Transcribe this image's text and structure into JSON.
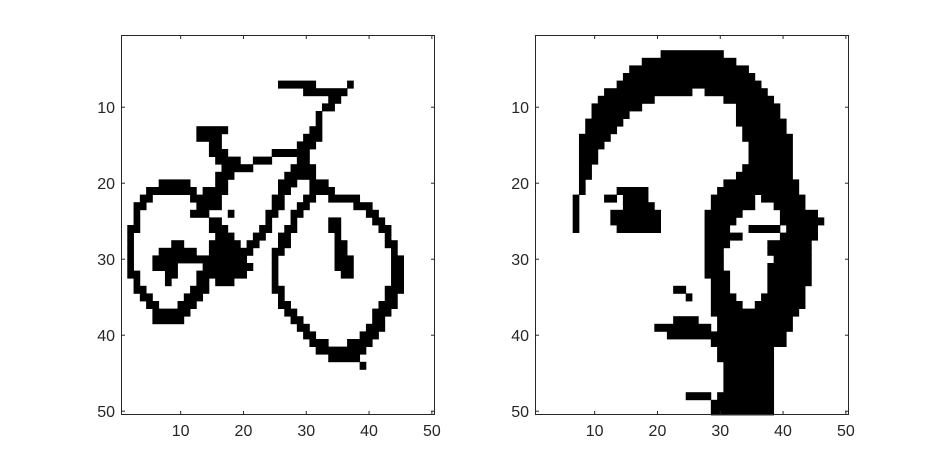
{
  "figure": {
    "background": "#ffffff",
    "axis_color": "#262626",
    "pixel_on_color": "#000000",
    "pixel_off_color": "#ffffff"
  },
  "chart_data": [
    {
      "type": "heatmap",
      "subtype": "binary-image",
      "title": "",
      "xlabel": "",
      "ylabel": "",
      "rows": 50,
      "cols": 50,
      "xlim": [
        0.5,
        50.5
      ],
      "ylim": [
        50.5,
        0.5
      ],
      "y_reversed": true,
      "x_ticks": [
        10,
        20,
        30,
        40,
        50
      ],
      "x_tick_labels": [
        "10",
        "20",
        "30",
        "40",
        "50"
      ],
      "y_ticks": [
        10,
        20,
        30,
        40,
        50
      ],
      "y_tick_labels": [
        "10",
        "20",
        "30",
        "40",
        "50"
      ],
      "grid": false,
      "legend": "none",
      "black_pixel_runs": [
        [
          7,
          26,
          31
        ],
        [
          7,
          37,
          37
        ],
        [
          8,
          30,
          36
        ],
        [
          9,
          34,
          35
        ],
        [
          10,
          33,
          34
        ],
        [
          11,
          32,
          32
        ],
        [
          12,
          32,
          32
        ],
        [
          13,
          13,
          17
        ],
        [
          13,
          31,
          32
        ],
        [
          14,
          13,
          16
        ],
        [
          14,
          30,
          32
        ],
        [
          15,
          15,
          16
        ],
        [
          15,
          29,
          31
        ],
        [
          16,
          15,
          17
        ],
        [
          16,
          25,
          30
        ],
        [
          17,
          16,
          19
        ],
        [
          17,
          22,
          24
        ],
        [
          17,
          29,
          30
        ],
        [
          18,
          17,
          21
        ],
        [
          18,
          28,
          31
        ],
        [
          19,
          16,
          18
        ],
        [
          19,
          27,
          29
        ],
        [
          19,
          30,
          31
        ],
        [
          20,
          7,
          11
        ],
        [
          20,
          16,
          17
        ],
        [
          20,
          26,
          28
        ],
        [
          20,
          31,
          33
        ],
        [
          21,
          5,
          12
        ],
        [
          21,
          14,
          17
        ],
        [
          21,
          26,
          27
        ],
        [
          21,
          31,
          34
        ],
        [
          22,
          4,
          5
        ],
        [
          22,
          12,
          16
        ],
        [
          22,
          25,
          26
        ],
        [
          22,
          30,
          31
        ],
        [
          22,
          34,
          38
        ],
        [
          23,
          3,
          4
        ],
        [
          23,
          13,
          16
        ],
        [
          23,
          25,
          26
        ],
        [
          23,
          29,
          30
        ],
        [
          23,
          38,
          40
        ],
        [
          24,
          3,
          3
        ],
        [
          24,
          12,
          14
        ],
        [
          24,
          18,
          18
        ],
        [
          24,
          24,
          25
        ],
        [
          24,
          28,
          29
        ],
        [
          24,
          40,
          41
        ],
        [
          25,
          3,
          3
        ],
        [
          25,
          15,
          16
        ],
        [
          25,
          24,
          24
        ],
        [
          25,
          28,
          28
        ],
        [
          25,
          34,
          35
        ],
        [
          25,
          41,
          42
        ],
        [
          26,
          2,
          3
        ],
        [
          26,
          15,
          17
        ],
        [
          26,
          23,
          24
        ],
        [
          26,
          27,
          28
        ],
        [
          26,
          34,
          35
        ],
        [
          26,
          42,
          43
        ],
        [
          27,
          2,
          2
        ],
        [
          27,
          16,
          18
        ],
        [
          27,
          22,
          23
        ],
        [
          27,
          26,
          27
        ],
        [
          27,
          35,
          35
        ],
        [
          27,
          43,
          43
        ],
        [
          28,
          2,
          2
        ],
        [
          28,
          9,
          10
        ],
        [
          28,
          15,
          19
        ],
        [
          28,
          21,
          22
        ],
        [
          28,
          26,
          27
        ],
        [
          28,
          35,
          36
        ],
        [
          28,
          43,
          44
        ],
        [
          29,
          2,
          2
        ],
        [
          29,
          7,
          12
        ],
        [
          29,
          15,
          21
        ],
        [
          29,
          25,
          26
        ],
        [
          29,
          35,
          36
        ],
        [
          29,
          44,
          44
        ],
        [
          30,
          2,
          2
        ],
        [
          30,
          6,
          9
        ],
        [
          30,
          10,
          17
        ],
        [
          30,
          18,
          20
        ],
        [
          30,
          25,
          25
        ],
        [
          30,
          35,
          37
        ],
        [
          30,
          44,
          45
        ],
        [
          31,
          2,
          2
        ],
        [
          31,
          6,
          8
        ],
        [
          31,
          9,
          9
        ],
        [
          31,
          14,
          21
        ],
        [
          31,
          25,
          25
        ],
        [
          31,
          35,
          37
        ],
        [
          31,
          44,
          45
        ],
        [
          32,
          2,
          3
        ],
        [
          32,
          8,
          9
        ],
        [
          32,
          13,
          20
        ],
        [
          32,
          25,
          25
        ],
        [
          32,
          36,
          37
        ],
        [
          32,
          44,
          45
        ],
        [
          33,
          3,
          3
        ],
        [
          33,
          8,
          8
        ],
        [
          33,
          13,
          14
        ],
        [
          33,
          16,
          18
        ],
        [
          33,
          25,
          25
        ],
        [
          33,
          44,
          45
        ],
        [
          34,
          3,
          4
        ],
        [
          34,
          12,
          14
        ],
        [
          34,
          25,
          26
        ],
        [
          34,
          43,
          45
        ],
        [
          35,
          4,
          5
        ],
        [
          35,
          11,
          13
        ],
        [
          35,
          26,
          26
        ],
        [
          35,
          43,
          44
        ],
        [
          36,
          5,
          6
        ],
        [
          36,
          10,
          12
        ],
        [
          36,
          26,
          27
        ],
        [
          36,
          42,
          44
        ],
        [
          37,
          6,
          11
        ],
        [
          37,
          27,
          28
        ],
        [
          37,
          41,
          43
        ],
        [
          38,
          6,
          10
        ],
        [
          38,
          28,
          29
        ],
        [
          38,
          41,
          42
        ],
        [
          39,
          29,
          30
        ],
        [
          39,
          40,
          42
        ],
        [
          40,
          30,
          31
        ],
        [
          40,
          39,
          41
        ],
        [
          41,
          31,
          33
        ],
        [
          41,
          37,
          40
        ],
        [
          42,
          32,
          39
        ],
        [
          43,
          34,
          38
        ],
        [
          44,
          39,
          39
        ]
      ]
    },
    {
      "type": "heatmap",
      "subtype": "binary-image",
      "title": "",
      "xlabel": "",
      "ylabel": "",
      "rows": 50,
      "cols": 50,
      "xlim": [
        0.5,
        50.5
      ],
      "ylim": [
        50.5,
        0.5
      ],
      "y_reversed": true,
      "x_ticks": [
        10,
        20,
        30,
        40,
        50
      ],
      "x_tick_labels": [
        "10",
        "20",
        "30",
        "40",
        "50"
      ],
      "y_ticks": [
        10,
        20,
        30,
        40,
        50
      ],
      "y_tick_labels": [
        "10",
        "20",
        "30",
        "40",
        "50"
      ],
      "grid": false,
      "legend": "none",
      "black_pixel_runs": [
        [
          3,
          21,
          30
        ],
        [
          4,
          18,
          32
        ],
        [
          5,
          16,
          34
        ],
        [
          6,
          15,
          35
        ],
        [
          7,
          14,
          36
        ],
        [
          8,
          12,
          25
        ],
        [
          8,
          28,
          37
        ],
        [
          9,
          11,
          19
        ],
        [
          9,
          31,
          38
        ],
        [
          10,
          10,
          17
        ],
        [
          10,
          33,
          39
        ],
        [
          11,
          10,
          15
        ],
        [
          11,
          33,
          39
        ],
        [
          12,
          9,
          14
        ],
        [
          12,
          33,
          40
        ],
        [
          13,
          9,
          13
        ],
        [
          13,
          34,
          40
        ],
        [
          14,
          8,
          12
        ],
        [
          14,
          34,
          41
        ],
        [
          15,
          8,
          11
        ],
        [
          15,
          35,
          41
        ],
        [
          16,
          8,
          10
        ],
        [
          16,
          35,
          41
        ],
        [
          17,
          8,
          10
        ],
        [
          17,
          35,
          41
        ],
        [
          18,
          8,
          9
        ],
        [
          18,
          34,
          41
        ],
        [
          19,
          8,
          9
        ],
        [
          19,
          33,
          41
        ],
        [
          20,
          8,
          8
        ],
        [
          20,
          31,
          42
        ],
        [
          21,
          8,
          8
        ],
        [
          21,
          14,
          18
        ],
        [
          21,
          30,
          42
        ],
        [
          22,
          7,
          7
        ],
        [
          22,
          12,
          13
        ],
        [
          22,
          15,
          18
        ],
        [
          22,
          29,
          35
        ],
        [
          22,
          37,
          43
        ],
        [
          23,
          7,
          7
        ],
        [
          23,
          15,
          19
        ],
        [
          23,
          29,
          35
        ],
        [
          23,
          39,
          43
        ],
        [
          24,
          7,
          7
        ],
        [
          24,
          13,
          20
        ],
        [
          24,
          28,
          33
        ],
        [
          24,
          40,
          45
        ],
        [
          25,
          7,
          7
        ],
        [
          25,
          13,
          20
        ],
        [
          25,
          28,
          32
        ],
        [
          25,
          40,
          46
        ],
        [
          26,
          7,
          7
        ],
        [
          26,
          14,
          20
        ],
        [
          26,
          28,
          31
        ],
        [
          26,
          35,
          39
        ],
        [
          26,
          41,
          45
        ],
        [
          27,
          28,
          33
        ],
        [
          27,
          40,
          45
        ],
        [
          28,
          28,
          31
        ],
        [
          28,
          38,
          44
        ],
        [
          29,
          28,
          30
        ],
        [
          29,
          38,
          44
        ],
        [
          30,
          28,
          30
        ],
        [
          30,
          39,
          44
        ],
        [
          31,
          28,
          30
        ],
        [
          31,
          38,
          44
        ],
        [
          32,
          28,
          31
        ],
        [
          32,
          38,
          44
        ],
        [
          33,
          29,
          31
        ],
        [
          33,
          38,
          44
        ],
        [
          34,
          23,
          24
        ],
        [
          34,
          29,
          31
        ],
        [
          34,
          38,
          43
        ],
        [
          35,
          25,
          25
        ],
        [
          35,
          29,
          32
        ],
        [
          35,
          37,
          43
        ],
        [
          36,
          29,
          33
        ],
        [
          36,
          36,
          43
        ],
        [
          37,
          29,
          34
        ],
        [
          37,
          35,
          42
        ],
        [
          38,
          23,
          26
        ],
        [
          38,
          30,
          41
        ],
        [
          39,
          20,
          28
        ],
        [
          39,
          30,
          41
        ],
        [
          40,
          22,
          28
        ],
        [
          40,
          29,
          40
        ],
        [
          41,
          29,
          40
        ],
        [
          42,
          30,
          38
        ],
        [
          43,
          30,
          38
        ],
        [
          44,
          31,
          38
        ],
        [
          45,
          31,
          38
        ],
        [
          46,
          31,
          38
        ],
        [
          47,
          31,
          38
        ],
        [
          48,
          25,
          28
        ],
        [
          48,
          30,
          38
        ],
        [
          49,
          29,
          38
        ],
        [
          50,
          29,
          38
        ]
      ]
    }
  ]
}
